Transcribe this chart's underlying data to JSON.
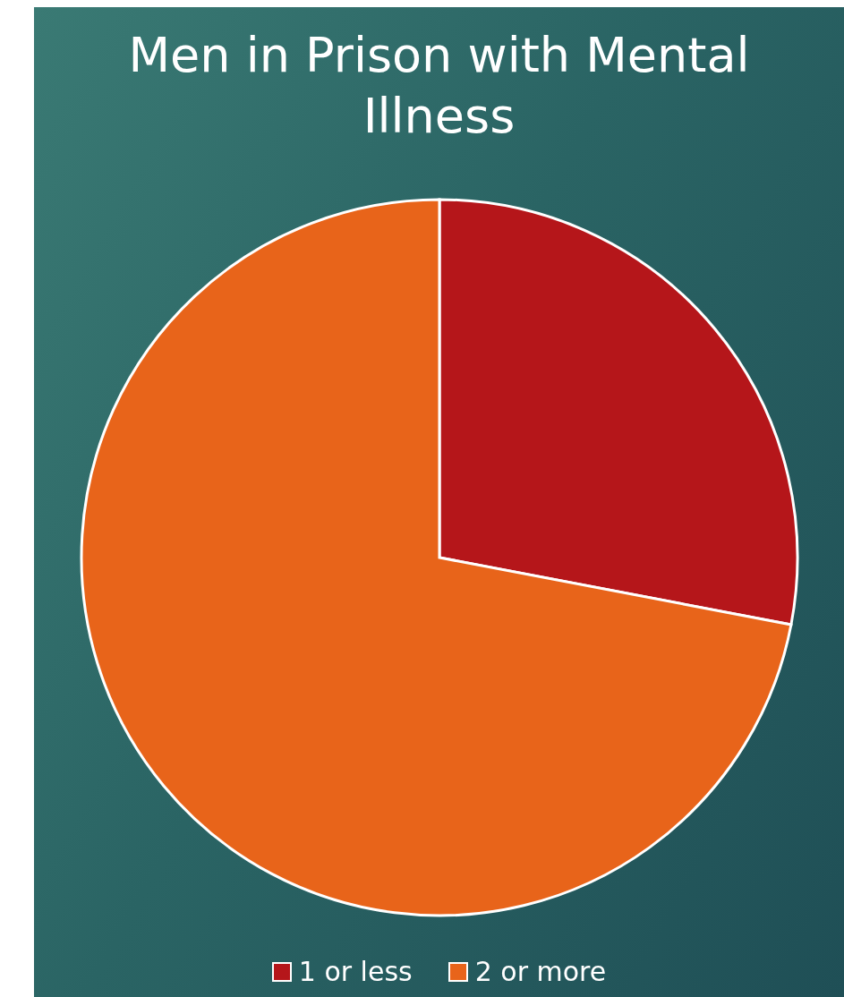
{
  "chart_data": {
    "type": "pie",
    "title": "Men in Prison with Mental Illness",
    "categories": [
      "1 or less",
      "2 or more"
    ],
    "values": [
      28,
      72
    ],
    "colors": [
      "#b5161a",
      "#e8641a"
    ],
    "legend": "bottom"
  }
}
